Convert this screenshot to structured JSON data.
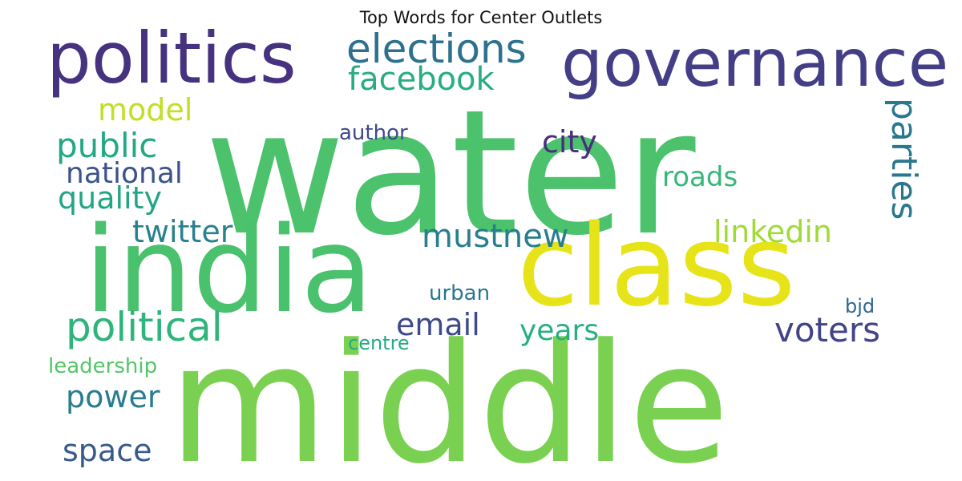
{
  "chart_data": {
    "type": "wordcloud",
    "title": "Top Words for Center Outlets",
    "words": [
      {
        "text": "water",
        "color": "#4cc26c"
      },
      {
        "text": "middle",
        "color": "#7ad151"
      },
      {
        "text": "india",
        "color": "#4ac16d"
      },
      {
        "text": "class",
        "color": "#e6e419"
      },
      {
        "text": "politics",
        "color": "#46327e"
      },
      {
        "text": "governance",
        "color": "#433e85"
      },
      {
        "text": "elections",
        "color": "#2c718e"
      },
      {
        "text": "facebook",
        "color": "#27ad81"
      },
      {
        "text": "model",
        "color": "#c2df23"
      },
      {
        "text": "public",
        "color": "#22a884"
      },
      {
        "text": "national",
        "color": "#3b528b"
      },
      {
        "text": "quality",
        "color": "#21a685"
      },
      {
        "text": "author",
        "color": "#3e4a89"
      },
      {
        "text": "city",
        "color": "#472f7d"
      },
      {
        "text": "roads",
        "color": "#35b779"
      },
      {
        "text": "parties",
        "color": "#2a788e"
      },
      {
        "text": "twitter",
        "color": "#26828e"
      },
      {
        "text": "mustnew",
        "color": "#277f8e"
      },
      {
        "text": "linkedin",
        "color": "#a0da39"
      },
      {
        "text": "political",
        "color": "#2fb47c"
      },
      {
        "text": "email",
        "color": "#3e4989"
      },
      {
        "text": "voters",
        "color": "#414487"
      },
      {
        "text": "urban",
        "color": "#2a768e"
      },
      {
        "text": "years",
        "color": "#29af7f"
      },
      {
        "text": "bjd",
        "color": "#31668e"
      },
      {
        "text": "centre",
        "color": "#25ab82"
      },
      {
        "text": "leadership",
        "color": "#54c568"
      },
      {
        "text": "power",
        "color": "#287d8e"
      },
      {
        "text": "space",
        "color": "#38598c"
      }
    ]
  }
}
